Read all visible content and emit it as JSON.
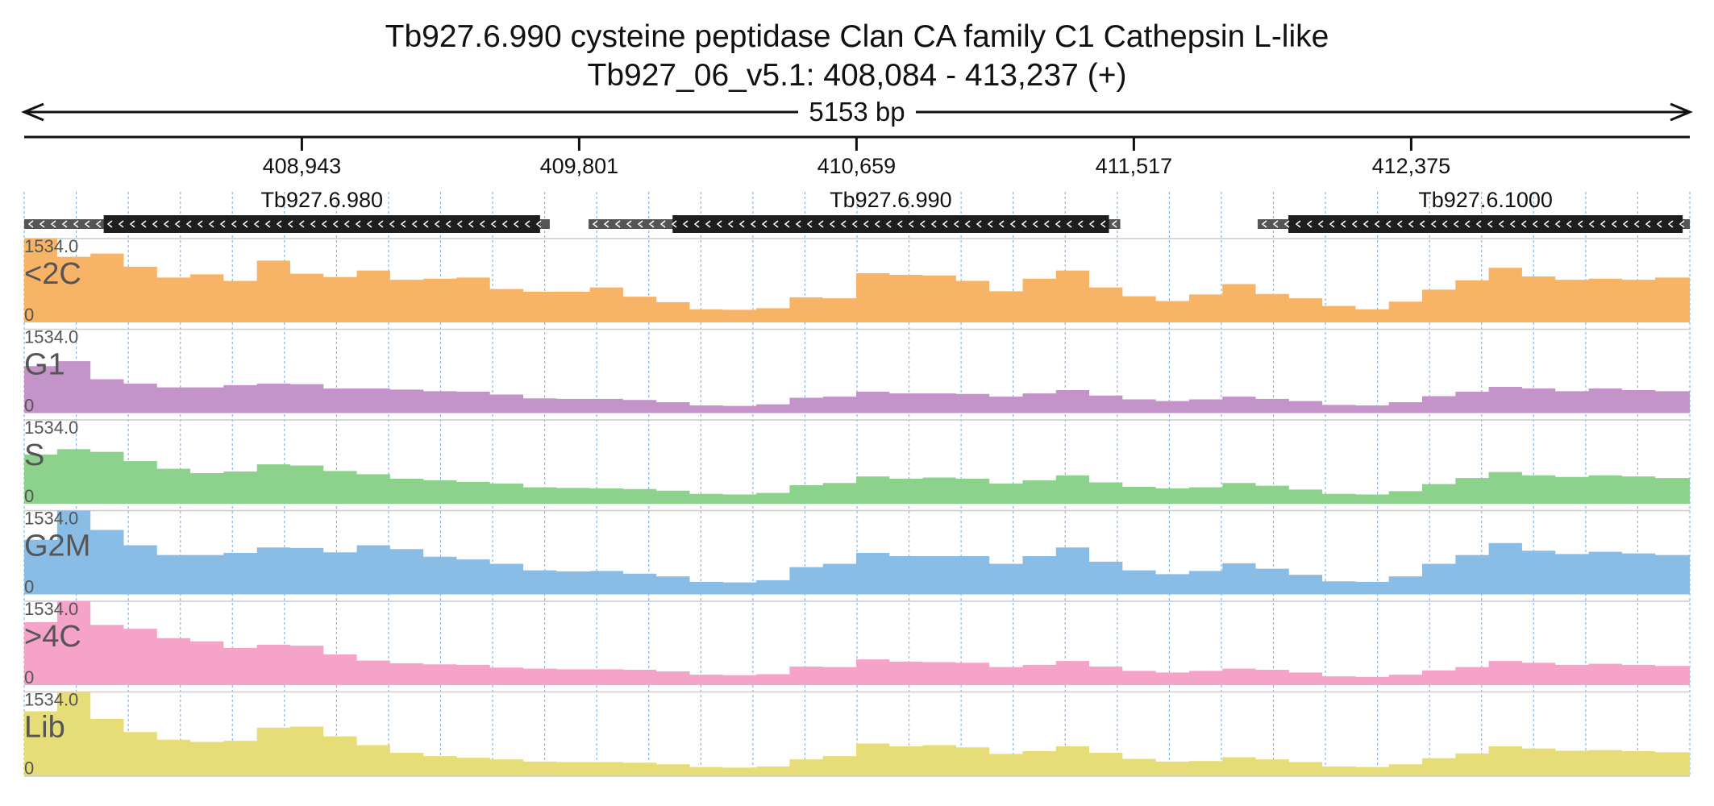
{
  "chart_data": {
    "type": "area",
    "title": "Tb927.6.990  cysteine peptidase  Clan CA  family C1  Cathepsin L-like",
    "subtitle": "Tb927_06_v5.1: 408,084 - 413,237 (+)",
    "span_label": "5153 bp",
    "region": {
      "start": 408084,
      "end": 413237
    },
    "ruler_ticks": [
      {
        "pos": 408943,
        "label": "408,943"
      },
      {
        "pos": 409801,
        "label": "409,801"
      },
      {
        "pos": 410659,
        "label": "410,659"
      },
      {
        "pos": 411517,
        "label": "411,517"
      },
      {
        "pos": 412375,
        "label": "412,375"
      }
    ],
    "genes": [
      {
        "name": "Tb927.6.980",
        "strand": "-",
        "utr_start": 408084,
        "cds_start": 408330,
        "cds_end": 409680,
        "utr_end": 409710
      },
      {
        "name": "Tb927.6.990",
        "strand": "-",
        "utr_start": 409830,
        "cds_start": 410090,
        "cds_end": 411440,
        "utr_end": 411475
      },
      {
        "name": "Tb927.6.1000",
        "strand": "-",
        "utr_start": 411900,
        "cds_start": 411995,
        "cds_end": 413215,
        "utr_end": 413237
      }
    ],
    "ylim": [
      0,
      1534.0
    ],
    "max_label": "1534.0",
    "min_label": "0",
    "x": [
      408084,
      408186,
      408289,
      408392,
      408495,
      408598,
      408701,
      408804,
      408907,
      409010,
      409113,
      409216,
      409319,
      409422,
      409525,
      409628,
      409731,
      409834,
      409937,
      410040,
      410143,
      410246,
      410349,
      410452,
      410555,
      410658,
      410761,
      410864,
      410967,
      411070,
      411173,
      411276,
      411379,
      411482,
      411585,
      411688,
      411791,
      411894,
      411997,
      412100,
      412203,
      412306,
      412409,
      412512,
      412615,
      412718,
      412821,
      412924,
      413027,
      413130,
      413237
    ],
    "series": [
      {
        "name": "<2C",
        "color": "#f7b366",
        "values": [
          1534,
          1200,
          1260,
          1020,
          820,
          880,
          760,
          1130,
          890,
          830,
          950,
          780,
          800,
          820,
          610,
          560,
          560,
          640,
          470,
          370,
          240,
          230,
          260,
          460,
          440,
          900,
          870,
          860,
          760,
          570,
          800,
          950,
          640,
          480,
          390,
          510,
          700,
          520,
          440,
          300,
          240,
          380,
          600,
          770,
          1000,
          840,
          780,
          800,
          780,
          820,
          690
        ]
      },
      {
        "name": "G1",
        "color": "#c493c9",
        "values": [
          860,
          950,
          620,
          540,
          470,
          470,
          510,
          540,
          530,
          450,
          450,
          430,
          400,
          390,
          340,
          270,
          260,
          260,
          240,
          200,
          140,
          130,
          160,
          280,
          300,
          390,
          360,
          360,
          350,
          300,
          360,
          420,
          320,
          250,
          220,
          250,
          300,
          260,
          220,
          150,
          140,
          200,
          310,
          390,
          480,
          450,
          400,
          450,
          420,
          400,
          320
        ]
      },
      {
        "name": "S",
        "color": "#8cd28c",
        "values": [
          900,
          1000,
          950,
          780,
          640,
          560,
          590,
          720,
          700,
          600,
          540,
          460,
          430,
          400,
          370,
          300,
          290,
          280,
          270,
          240,
          180,
          170,
          200,
          340,
          380,
          500,
          460,
          480,
          460,
          370,
          430,
          520,
          390,
          310,
          280,
          300,
          380,
          330,
          260,
          180,
          170,
          230,
          360,
          470,
          580,
          520,
          490,
          520,
          500,
          470,
          380
        ]
      },
      {
        "name": "G2M",
        "color": "#89bde6",
        "values": [
          1000,
          1534,
          1180,
          900,
          720,
          720,
          760,
          860,
          850,
          770,
          900,
          830,
          690,
          640,
          560,
          440,
          420,
          430,
          380,
          330,
          230,
          220,
          260,
          500,
          560,
          760,
          700,
          700,
          700,
          560,
          700,
          860,
          600,
          440,
          370,
          430,
          570,
          470,
          360,
          240,
          230,
          330,
          560,
          720,
          940,
          800,
          740,
          780,
          750,
          720,
          560
        ]
      },
      {
        "name": ">4C",
        "color": "#f5a3c9",
        "values": [
          1150,
          1534,
          1100,
          1030,
          860,
          800,
          680,
          740,
          720,
          560,
          450,
          400,
          380,
          370,
          320,
          300,
          290,
          290,
          280,
          250,
          190,
          180,
          200,
          340,
          330,
          470,
          430,
          420,
          410,
          330,
          370,
          440,
          340,
          260,
          230,
          260,
          300,
          280,
          230,
          160,
          150,
          190,
          270,
          330,
          440,
          410,
          370,
          390,
          370,
          350,
          280
        ]
      },
      {
        "name": "Lib",
        "color": "#e6dc78",
        "values": [
          1180,
          1534,
          1040,
          800,
          660,
          620,
          640,
          880,
          900,
          720,
          560,
          420,
          360,
          330,
          300,
          260,
          250,
          250,
          240,
          210,
          160,
          150,
          170,
          300,
          360,
          590,
          540,
          560,
          520,
          400,
          450,
          540,
          420,
          310,
          260,
          270,
          340,
          300,
          250,
          170,
          160,
          210,
          320,
          410,
          540,
          500,
          460,
          470,
          450,
          430,
          340
        ]
      }
    ],
    "grid": true,
    "legend": "none"
  }
}
